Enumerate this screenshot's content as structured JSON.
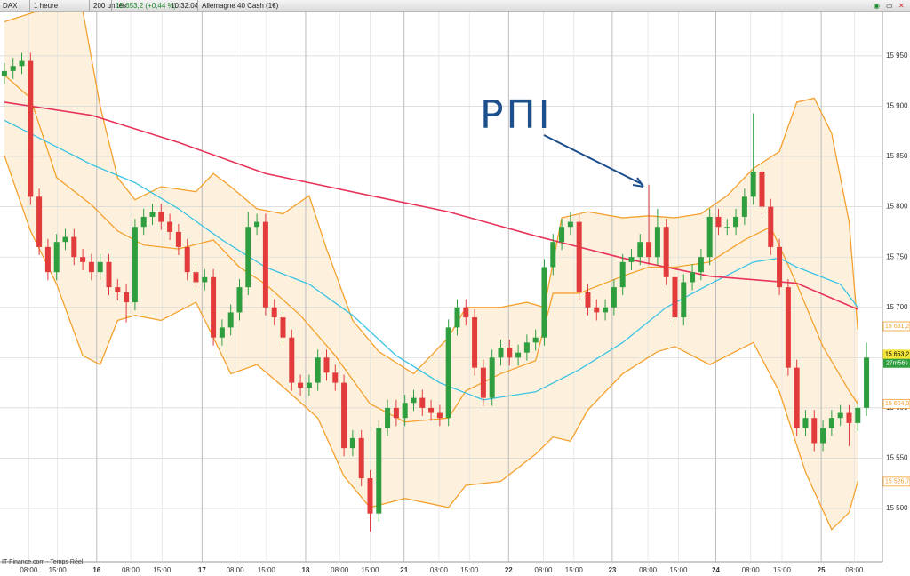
{
  "toolbar": {
    "symbol": "DAX",
    "period": "1 heure",
    "units": "200 unités",
    "quote": "15 653,2 (+0,44 %)",
    "time": "10:32:04",
    "instrument": "Allemagne 40 Cash (1€)"
  },
  "footer": {
    "source": "IT-Finance.com - Temps Réel"
  },
  "chart_data": {
    "type": "candlestick",
    "annotation": "PΠI",
    "up_color": "#2e9e3e",
    "down_color": "#e23b3b",
    "band_fill": "#fdf1de",
    "grid": true,
    "open": [
      15930,
      15935,
      15940,
      15945,
      15810,
      15760,
      15735,
      15765,
      15770,
      15750,
      15745,
      15735,
      15745,
      15720,
      15715,
      15705,
      15780,
      15790,
      15795,
      15785,
      15775,
      15760,
      15735,
      15725,
      15730,
      15670,
      15680,
      15695,
      15720,
      15780,
      15785,
      15700,
      15690,
      15670,
      15625,
      15620,
      15625,
      15650,
      15635,
      15625,
      15560,
      15570,
      15530,
      15495,
      15580,
      15600,
      15590,
      15605,
      15610,
      15600,
      15595,
      15590,
      15680,
      15700,
      15690,
      15640,
      15610,
      15650,
      15660,
      15650,
      15655,
      15665,
      15670,
      15740,
      15765,
      15780,
      15785,
      15715,
      15700,
      15695,
      15700,
      15720,
      15745,
      15750,
      15765,
      15750,
      15780,
      15730,
      15690,
      15725,
      15735,
      15750,
      15790,
      15780,
      15780,
      15790,
      15810,
      15835,
      15800,
      15760,
      15720,
      15640,
      15580,
      15590,
      15565,
      15580,
      15590,
      15595,
      15585,
      15600
    ],
    "high": [
      15943,
      15948,
      15953,
      15953,
      15818,
      15768,
      15773,
      15778,
      15778,
      15758,
      15753,
      15753,
      15753,
      15728,
      15723,
      15788,
      15798,
      15803,
      15803,
      15793,
      15783,
      15768,
      15743,
      15738,
      15738,
      15688,
      15703,
      15728,
      15795,
      15793,
      15793,
      15708,
      15698,
      15678,
      15633,
      15633,
      15658,
      15658,
      15643,
      15633,
      15578,
      15578,
      15538,
      15588,
      15608,
      15608,
      15613,
      15618,
      15618,
      15608,
      15603,
      15688,
      15708,
      15708,
      15698,
      15648,
      15658,
      15668,
      15668,
      15663,
      15673,
      15678,
      15748,
      15773,
      15788,
      15795,
      15793,
      15723,
      15708,
      15708,
      15728,
      15753,
      15758,
      15773,
      15822,
      15798,
      15788,
      15738,
      15733,
      15743,
      15758,
      15798,
      15798,
      15788,
      15798,
      15818,
      15893,
      15843,
      15808,
      15768,
      15728,
      15648,
      15598,
      15598,
      15588,
      15598,
      15603,
      15603,
      15608,
      15665
    ],
    "low": [
      15922,
      15927,
      15932,
      15802,
      15752,
      15727,
      15727,
      15757,
      15742,
      15737,
      15727,
      15727,
      15712,
      15707,
      15685,
      15697,
      15772,
      15782,
      15777,
      15767,
      15752,
      15727,
      15717,
      15717,
      15662,
      15662,
      15672,
      15687,
      15712,
      15772,
      15692,
      15682,
      15662,
      15617,
      15612,
      15612,
      15617,
      15627,
      15617,
      15552,
      15552,
      15522,
      15477,
      15487,
      15572,
      15582,
      15582,
      15597,
      15592,
      15587,
      15582,
      15582,
      15672,
      15682,
      15632,
      15602,
      15602,
      15642,
      15642,
      15642,
      15647,
      15657,
      15662,
      15732,
      15757,
      15772,
      15707,
      15692,
      15687,
      15687,
      15692,
      15712,
      15737,
      15742,
      15742,
      15742,
      15722,
      15682,
      15682,
      15717,
      15727,
      15742,
      15772,
      15772,
      15772,
      15782,
      15802,
      15792,
      15752,
      15712,
      15632,
      15572,
      15572,
      15557,
      15557,
      15572,
      15582,
      15562,
      15577,
      15592
    ],
    "close": [
      15935,
      15940,
      15945,
      15810,
      15760,
      15735,
      15765,
      15770,
      15750,
      15745,
      15735,
      15745,
      15720,
      15715,
      15705,
      15780,
      15790,
      15795,
      15785,
      15775,
      15760,
      15735,
      15725,
      15730,
      15670,
      15680,
      15695,
      15720,
      15780,
      15785,
      15700,
      15690,
      15670,
      15625,
      15620,
      15625,
      15650,
      15635,
      15625,
      15560,
      15570,
      15530,
      15495,
      15580,
      15600,
      15590,
      15605,
      15610,
      15600,
      15595,
      15590,
      15680,
      15700,
      15690,
      15640,
      15610,
      15650,
      15660,
      15650,
      15655,
      15665,
      15670,
      15740,
      15765,
      15780,
      15785,
      15715,
      15700,
      15695,
      15700,
      15720,
      15745,
      15750,
      15765,
      15750,
      15780,
      15730,
      15690,
      15725,
      15735,
      15750,
      15790,
      15780,
      15780,
      15790,
      15810,
      15835,
      15800,
      15760,
      15720,
      15640,
      15580,
      15590,
      15565,
      15580,
      15590,
      15595,
      15585,
      15600,
      15650
    ],
    "lines": [
      {
        "color": "#f5a12e",
        "x": [
          0,
          4,
          9,
          11,
          13,
          15,
          18,
          22,
          24,
          26,
          29,
          32,
          35,
          37,
          40,
          43,
          47,
          51,
          53,
          57,
          60,
          62,
          64,
          67,
          71,
          74,
          77,
          80,
          83,
          86,
          89,
          91,
          93,
          95,
          97,
          98
        ],
        "values": [
          15984,
          15995,
          15995,
          15900,
          15829,
          15807,
          15820,
          15815,
          15833,
          15820,
          15798,
          15793,
          15811,
          15758,
          15687,
          15656,
          15634,
          15670,
          15700,
          15700,
          15705,
          15700,
          15789,
          15795,
          15789,
          15791,
          15789,
          15793,
          15811,
          15838,
          15855,
          15904,
          15908,
          15873,
          15785,
          15678
        ]
      },
      {
        "color": "#f5a12e",
        "x": [
          0,
          3,
          6,
          10,
          13,
          16,
          20,
          24,
          27,
          30,
          34,
          38,
          42,
          46,
          51,
          53,
          57,
          61,
          63,
          66,
          71,
          74,
          77,
          81,
          85,
          88,
          91,
          94,
          97,
          98
        ],
        "values": [
          15931,
          15908,
          15829,
          15802,
          15776,
          15762,
          15758,
          15767,
          15740,
          15723,
          15692,
          15652,
          15604,
          15586,
          15590,
          15617,
          15634,
          15647,
          15714,
          15714,
          15731,
          15740,
          15740,
          15745,
          15767,
          15780,
          15723,
          15661,
          15617,
          15604
        ]
      },
      {
        "color": "#f5a12e",
        "x": [
          0,
          3,
          6,
          9,
          11,
          13,
          15,
          18,
          22,
          24,
          26,
          29,
          32,
          36,
          39,
          42,
          46,
          51,
          53,
          57,
          61,
          63,
          65,
          67,
          71,
          75,
          77,
          81,
          86,
          89,
          92,
          95,
          97,
          98
        ],
        "values": [
          15851,
          15776,
          15723,
          15652,
          15643,
          15687,
          15692,
          15687,
          15705,
          15670,
          15634,
          15643,
          15621,
          15590,
          15532,
          15501,
          15510,
          15501,
          15523,
          15527,
          15554,
          15571,
          15567,
          15598,
          15634,
          15656,
          15661,
          15643,
          15665,
          15616,
          15536,
          15479,
          15496,
          15527
        ]
      },
      {
        "color": "#3cc3e3",
        "x": [
          0,
          5,
          10,
          15,
          20,
          25,
          30,
          35,
          40,
          45,
          50,
          55,
          61,
          66,
          71,
          76,
          81,
          86,
          89,
          91,
          96,
          98
        ],
        "values": [
          15886,
          15864,
          15842,
          15824,
          15798,
          15767,
          15740,
          15723,
          15692,
          15652,
          15625,
          15608,
          15616,
          15638,
          15665,
          15700,
          15723,
          15745,
          15749,
          15740,
          15723,
          15700
        ]
      },
      {
        "color": "#e8335a",
        "x": [
          0,
          10,
          20,
          30,
          41,
          51,
          61,
          71,
          81,
          91,
          98
        ],
        "values": [
          15904,
          15891,
          15864,
          15833,
          15813,
          15795,
          15771,
          15749,
          15731,
          15724,
          15698
        ]
      }
    ],
    "xlim": [
      -0.5,
      100.83
    ],
    "xticks": [
      {
        "value": 2.8,
        "label": "08:00"
      },
      {
        "value": 6.1,
        "label": "15:00"
      },
      {
        "value": 10.6,
        "label": "16"
      },
      {
        "value": 14.5,
        "label": "08:00"
      },
      {
        "value": 18.1,
        "label": "15:00"
      },
      {
        "value": 22.7,
        "label": "17"
      },
      {
        "value": 26.5,
        "label": "08:00"
      },
      {
        "value": 30.1,
        "label": "15:00"
      },
      {
        "value": 34.6,
        "label": "18"
      },
      {
        "value": 38.5,
        "label": "08:00"
      },
      {
        "value": 42.0,
        "label": "15:00"
      },
      {
        "value": 45.9,
        "label": "21"
      },
      {
        "value": 49.9,
        "label": "08:00"
      },
      {
        "value": 53.4,
        "label": "15:00"
      },
      {
        "value": 57.9,
        "label": "22"
      },
      {
        "value": 61.9,
        "label": "08:00"
      },
      {
        "value": 65.4,
        "label": "15:00"
      },
      {
        "value": 69.8,
        "label": "23"
      },
      {
        "value": 73.9,
        "label": "08:00"
      },
      {
        "value": 77.4,
        "label": "15:00"
      },
      {
        "value": 81.7,
        "label": "24"
      },
      {
        "value": 85.7,
        "label": "08:00"
      },
      {
        "value": 89.3,
        "label": "15:00"
      },
      {
        "value": 93.8,
        "label": "25"
      },
      {
        "value": 97.6,
        "label": "08:00"
      }
    ],
    "ylim": [
      15447,
      15995
    ],
    "yticks": [
      {
        "value": 15500,
        "label": "15 500"
      },
      {
        "value": 15550,
        "label": "15 550"
      },
      {
        "value": 15600,
        "label": "15 600"
      },
      {
        "value": 15650,
        "label": "15 650"
      },
      {
        "value": 15700,
        "label": "15 700"
      },
      {
        "value": 15750,
        "label": "15 750"
      },
      {
        "value": 15800,
        "label": "15 800"
      },
      {
        "value": 15850,
        "label": "15 850"
      },
      {
        "value": 15900,
        "label": "15 900"
      },
      {
        "value": 15950,
        "label": "15 950"
      }
    ],
    "price_tags": [
      {
        "value": 15681.2,
        "label": "15 681,2",
        "color": "#f5a12e"
      },
      {
        "value": 15653.2,
        "label": "15 653,2",
        "color": "#f2e33a"
      },
      {
        "value": 15604.0,
        "label": "15 604,0",
        "color": "#f5a12e"
      },
      {
        "value": 15526.7,
        "label": "15 526,7",
        "color": "#f5a12e"
      }
    ],
    "countdown": "27m56s"
  }
}
